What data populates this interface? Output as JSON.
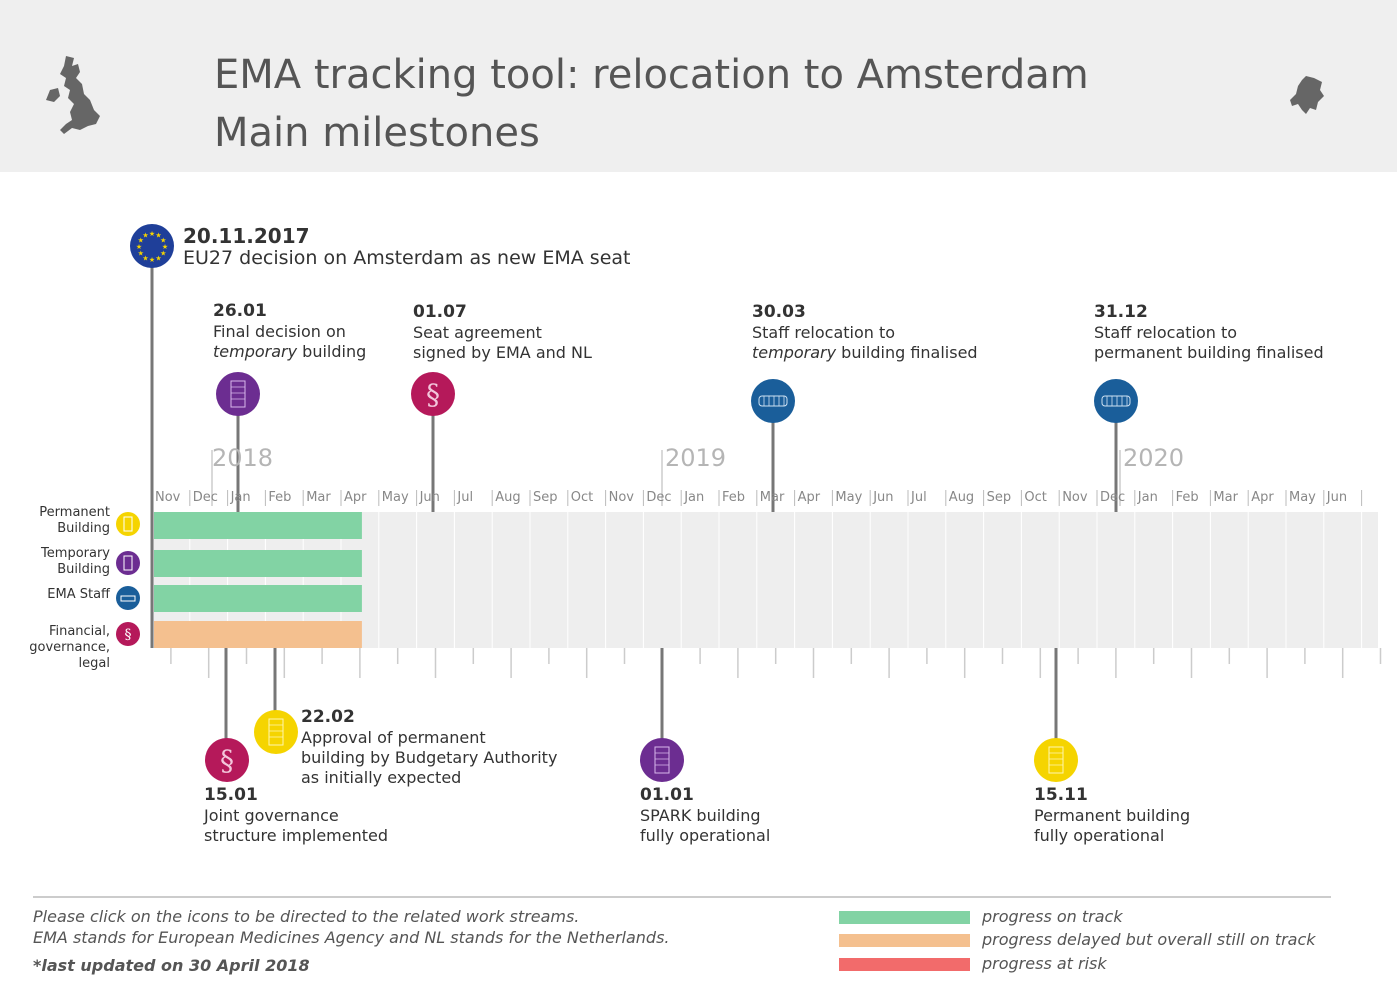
{
  "header": {
    "title_line1": "EMA tracking tool: relocation to Amsterdam",
    "title_line2": "Main milestones"
  },
  "colors": {
    "header_bg": "#efefef",
    "eu_blue": "#1f3f99",
    "permanent_yellow": "#f5d400",
    "temporary_purple": "#6c2d91",
    "staff_blue": "#1a5e9a",
    "financial_magenta": "#b5195a",
    "on_track_green": "#82d3a4",
    "delayed_orange": "#f4c08f",
    "at_risk_red": "#f26b6b",
    "grid_bg": "#eeeeee"
  },
  "main_milestone": {
    "date": "20.11.2017",
    "label": "EU27 decision on Amsterdam as new EMA seat",
    "icon": "eu-flag-icon"
  },
  "milestones_top": [
    {
      "date": "26.01",
      "line1": "Final decision on",
      "line2_italic": "temporary",
      "line2_rest": " building",
      "icon": "temporary-building-icon"
    },
    {
      "date": "01.07",
      "line1": "Seat agreement",
      "line2_italic": "",
      "line2_rest": "signed by EMA and NL",
      "icon": "paragraph-law-icon"
    },
    {
      "date": "30.03",
      "line1": "Staff relocation to",
      "line2_italic": "temporary",
      "line2_rest": " building finalised",
      "icon": "staff-group-icon"
    },
    {
      "date": "31.12",
      "line1": "Staff relocation to",
      "line2_italic": "",
      "line2_rest": "permanent building finalised",
      "icon": "staff-group-icon"
    }
  ],
  "milestones_bottom": [
    {
      "date": "15.01",
      "line1": "Joint governance",
      "line2": "structure implemented",
      "line3": "",
      "icon": "paragraph-law-icon"
    },
    {
      "date": "22.02",
      "line1": "Approval of permanent",
      "line2": "building by Budgetary Authority",
      "line3": "as initially expected",
      "icon": "permanent-building-icon"
    },
    {
      "date": "01.01",
      "line1": "SPARK building",
      "line2": "fully operational",
      "line3": "",
      "icon": "temporary-building-icon"
    },
    {
      "date": "15.11",
      "line1": "Permanent building",
      "line2": "fully operational",
      "line3": "",
      "icon": "permanent-building-icon"
    }
  ],
  "years": [
    "2018",
    "2019",
    "2020"
  ],
  "months": [
    "Nov",
    "Dec",
    "Jan",
    "Feb",
    "Mar",
    "Apr",
    "May",
    "Jun",
    "Jul",
    "Aug",
    "Sep",
    "Oct",
    "Nov",
    "Dec",
    "Jan",
    "Feb",
    "Mar",
    "Apr",
    "May",
    "Jun",
    "Jul",
    "Aug",
    "Sep",
    "Oct",
    "Nov",
    "Dec",
    "Jan",
    "Feb",
    "Mar",
    "Apr",
    "May",
    "Jun"
  ],
  "workstreams": [
    {
      "label_line1": "Permanent",
      "label_line2": "Building",
      "label_line3": "",
      "status": "on_track",
      "progress_months": 5.5
    },
    {
      "label_line1": "Temporary",
      "label_line2": "Building",
      "label_line3": "",
      "status": "on_track",
      "progress_months": 5.5
    },
    {
      "label_line1": "EMA Staff",
      "label_line2": "",
      "label_line3": "",
      "status": "on_track",
      "progress_months": 5.5
    },
    {
      "label_line1": "Financial,",
      "label_line2": "governance,",
      "label_line3": "legal",
      "status": "delayed",
      "progress_months": 5.5
    }
  ],
  "footer": {
    "note1": "Please click on the icons to be directed to the related work streams.",
    "note2": "EMA stands for European Medicines Agency and NL stands for the Netherlands.",
    "updated": "*last updated on 30 April 2018"
  },
  "legend": [
    {
      "label": "progress on track",
      "color": "#82d3a4"
    },
    {
      "label": "progress delayed but overall still on track",
      "color": "#f4c08f"
    },
    {
      "label": "progress at risk",
      "color": "#f26b6b"
    }
  ]
}
